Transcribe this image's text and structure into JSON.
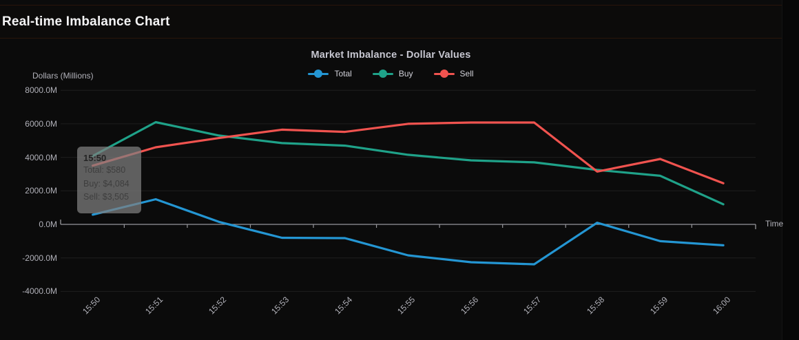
{
  "page": {
    "title": "Real-time Imbalance Chart"
  },
  "chart": {
    "title": "Market Imbalance - Dollar Values",
    "y_axis_title": "Dollars (Millions)",
    "x_axis_title": "Time",
    "colors": {
      "total": "#2496d3",
      "buy": "#1fa289",
      "sell": "#f0534f",
      "axis": "#97979c",
      "grid": "#1f1f1f"
    }
  },
  "tooltip": {
    "title": "15:50",
    "rows": [
      "Total: $580",
      "Buy: $4,084",
      "Sell: $3,505"
    ]
  },
  "chart_data": {
    "type": "line",
    "title": "Market Imbalance - Dollar Values",
    "xlabel": "Time",
    "ylabel": "Dollars (Millions)",
    "x": [
      "15:50",
      "15:51",
      "15:52",
      "15:53",
      "15:54",
      "15:55",
      "15:56",
      "15:57",
      "15:58",
      "15:59",
      "16:00"
    ],
    "series": [
      {
        "name": "Total",
        "color": "#2496d3",
        "values": [
          580,
          1500,
          150,
          -800,
          -820,
          -1850,
          -2260,
          -2380,
          100,
          -1000,
          -1250
        ]
      },
      {
        "name": "Buy",
        "color": "#1fa289",
        "values": [
          4084,
          6100,
          5300,
          4850,
          4700,
          4150,
          3820,
          3700,
          3250,
          2900,
          1200
        ]
      },
      {
        "name": "Sell",
        "color": "#f0534f",
        "values": [
          3505,
          4600,
          5150,
          5650,
          5520,
          6000,
          6080,
          6080,
          3150,
          3900,
          2450
        ]
      }
    ],
    "ylim": [
      -4000,
      8000
    ],
    "yticks": [
      {
        "value": 8000,
        "label": "8000.0M"
      },
      {
        "value": 6000,
        "label": "6000.0M"
      },
      {
        "value": 4000,
        "label": "4000.0M"
      },
      {
        "value": 2000,
        "label": "2000.0M"
      },
      {
        "value": 0,
        "label": "0.0M"
      },
      {
        "value": -2000,
        "label": "-2000.0M"
      },
      {
        "value": -4000,
        "label": "-4000.0M"
      }
    ],
    "grid": true,
    "legend_position": "top"
  }
}
